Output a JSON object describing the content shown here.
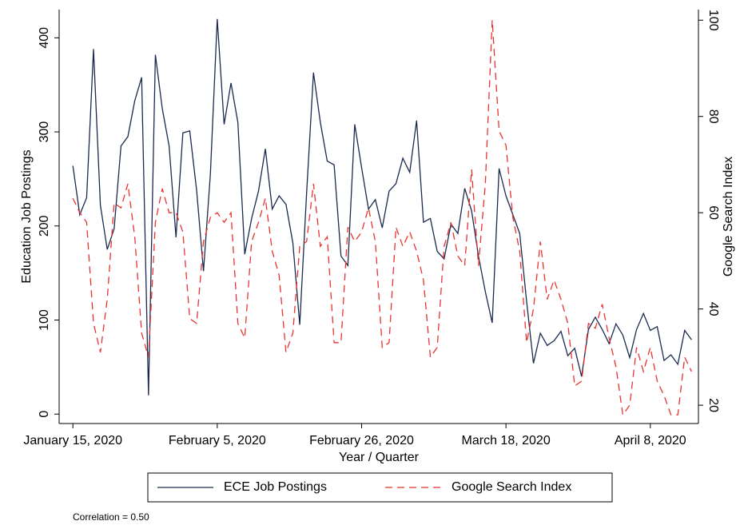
{
  "chart_data": {
    "type": "line",
    "x_title": "Year / Quarter",
    "y_title": "Education Job Postings",
    "y2_title": "Google Search Index",
    "note": "Correlation = 0.50",
    "legend_position": "bottom",
    "xlim": [
      "2020-01-13",
      "2020-04-15"
    ],
    "xticks": [
      {
        "value": "2020-01-15",
        "label": "January 15, 2020"
      },
      {
        "value": "2020-02-05",
        "label": "February 5, 2020"
      },
      {
        "value": "2020-02-26",
        "label": "February 26, 2020"
      },
      {
        "value": "2020-03-18",
        "label": "March 18, 2020"
      },
      {
        "value": "2020-04-08",
        "label": "April 8, 2020"
      }
    ],
    "ylim": [
      -10,
      430
    ],
    "yticks": [
      0,
      100,
      200,
      300,
      400
    ],
    "y2lim": [
      16.2,
      102.2
    ],
    "y2ticks": [
      20,
      40,
      60,
      80,
      100
    ],
    "x": [
      "2020-01-15",
      "2020-01-16",
      "2020-01-17",
      "2020-01-18",
      "2020-01-19",
      "2020-01-20",
      "2020-01-21",
      "2020-01-22",
      "2020-01-23",
      "2020-01-24",
      "2020-01-25",
      "2020-01-26",
      "2020-01-27",
      "2020-01-28",
      "2020-01-29",
      "2020-01-30",
      "2020-01-31",
      "2020-02-01",
      "2020-02-02",
      "2020-02-03",
      "2020-02-04",
      "2020-02-05",
      "2020-02-06",
      "2020-02-07",
      "2020-02-08",
      "2020-02-09",
      "2020-02-10",
      "2020-02-11",
      "2020-02-12",
      "2020-02-13",
      "2020-02-14",
      "2020-02-15",
      "2020-02-16",
      "2020-02-17",
      "2020-02-18",
      "2020-02-19",
      "2020-02-20",
      "2020-02-21",
      "2020-02-22",
      "2020-02-23",
      "2020-02-24",
      "2020-02-25",
      "2020-02-26",
      "2020-02-27",
      "2020-02-28",
      "2020-02-29",
      "2020-03-01",
      "2020-03-02",
      "2020-03-03",
      "2020-03-04",
      "2020-03-05",
      "2020-03-06",
      "2020-03-07",
      "2020-03-08",
      "2020-03-09",
      "2020-03-10",
      "2020-03-11",
      "2020-03-12",
      "2020-03-13",
      "2020-03-14",
      "2020-03-15",
      "2020-03-16",
      "2020-03-17",
      "2020-03-18",
      "2020-03-19",
      "2020-03-20",
      "2020-03-21",
      "2020-03-22",
      "2020-03-23",
      "2020-03-24",
      "2020-03-25",
      "2020-03-26",
      "2020-03-27",
      "2020-03-28",
      "2020-03-29",
      "2020-03-30",
      "2020-03-31",
      "2020-04-01",
      "2020-04-02",
      "2020-04-03",
      "2020-04-04",
      "2020-04-05",
      "2020-04-06",
      "2020-04-07",
      "2020-04-08",
      "2020-04-09",
      "2020-04-10",
      "2020-04-11",
      "2020-04-12",
      "2020-04-13",
      "2020-04-14"
    ],
    "series": [
      {
        "name": "ECE Job Postings",
        "color": "#1a2a4f",
        "dash": "solid",
        "values": [
          264,
          212,
          230,
          388,
          222,
          175,
          197,
          285,
          295,
          333,
          358,
          20,
          382,
          325,
          285,
          188,
          299,
          301,
          238,
          152,
          255,
          420,
          308,
          352,
          310,
          170,
          208,
          237,
          282,
          218,
          232,
          223,
          182,
          95,
          235,
          363,
          310,
          269,
          265,
          168,
          158,
          308,
          262,
          218,
          228,
          198,
          237,
          245,
          272,
          257,
          312,
          204,
          208,
          173,
          165,
          202,
          192,
          240,
          216,
          168,
          130,
          97,
          261,
          232,
          212,
          192,
          120,
          54,
          86,
          73,
          78,
          88,
          62,
          70,
          40,
          90,
          103,
          90,
          75,
          96,
          84,
          60,
          90,
          107,
          89,
          93,
          57,
          63,
          53,
          89,
          79
        ]
      },
      {
        "name": "Google Search Index",
        "color": "#e8332f",
        "dash": "dashed",
        "axis": "y2",
        "values": [
          63,
          60,
          58,
          37,
          31,
          42,
          62,
          61,
          66,
          55,
          35,
          30,
          58,
          65,
          60,
          60,
          56,
          38,
          37,
          54,
          59,
          60,
          58,
          60,
          37,
          34,
          54,
          58,
          63,
          52,
          47,
          31,
          35,
          53,
          54,
          66,
          53,
          55,
          33,
          33,
          57,
          54,
          56,
          61,
          54,
          32,
          33,
          57,
          53,
          56,
          52,
          46,
          30,
          32,
          53,
          58,
          51,
          49,
          69,
          49,
          66,
          100,
          77,
          74,
          59,
          52,
          33,
          40,
          54,
          42,
          46,
          42,
          37,
          24,
          25,
          37,
          36,
          41,
          34,
          28,
          18,
          20,
          32,
          27,
          32,
          25,
          22,
          18,
          18,
          30,
          27
        ]
      }
    ]
  }
}
